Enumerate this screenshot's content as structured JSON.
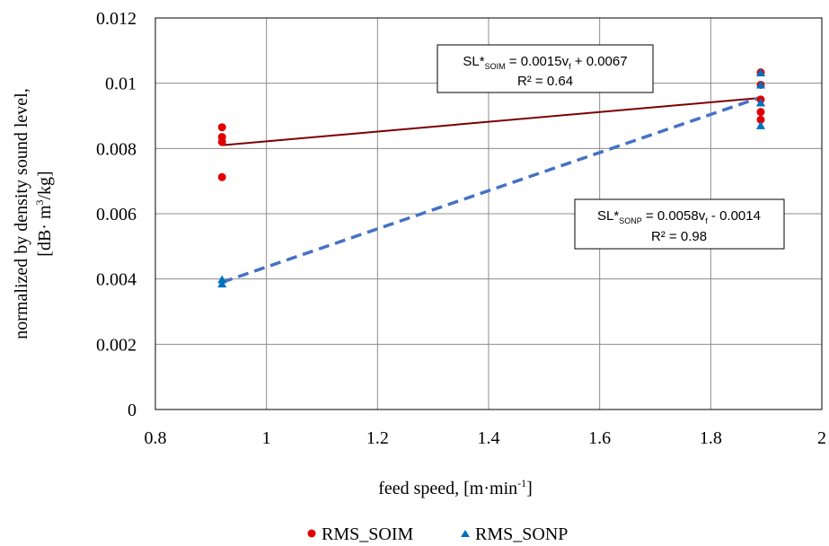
{
  "chart_data": {
    "type": "scatter",
    "title": "",
    "xlabel": "feed speed,  [m·min",
    "xlabel_sup": "-1",
    "xlabel_close": "]",
    "ylabel_line1": "normalized by density sound level,",
    "ylabel_line2_pre": "[dB· m",
    "ylabel_line2_sup": "3",
    "ylabel_line2_post": "/kg]",
    "xlim": [
      0.8,
      2.0
    ],
    "ylim": [
      0,
      0.012
    ],
    "x_ticks": [
      0.8,
      1,
      1.2,
      1.4,
      1.6,
      1.8,
      2
    ],
    "x_tick_labels": [
      "0.8",
      "1",
      "1.2",
      "1.4",
      "1.6",
      "1.8",
      "2"
    ],
    "y_ticks": [
      0,
      0.002,
      0.004,
      0.006,
      0.008,
      0.01,
      0.012
    ],
    "y_tick_labels": [
      "0",
      "0.002",
      "0.004",
      "0.006",
      "0.008",
      "0.01",
      "0.012"
    ],
    "grid": true,
    "legend_position": "bottom",
    "series": [
      {
        "name": "RMS_SOIM",
        "marker": "circle",
        "color": "#E00000",
        "x": [
          0.92,
          0.92,
          0.92,
          0.92,
          1.89,
          1.89,
          1.89,
          1.89,
          1.89
        ],
        "y": [
          0.00865,
          0.00835,
          0.0082,
          0.00712,
          0.01033,
          0.00995,
          0.0095,
          0.00912,
          0.00888
        ]
      },
      {
        "name": "RMS_SONP",
        "marker": "triangle",
        "color": "#0070C0",
        "x": [
          0.92,
          0.92,
          1.89,
          1.89,
          1.89,
          1.89
        ],
        "y": [
          0.00398,
          0.00385,
          0.01032,
          0.00995,
          0.0094,
          0.0087
        ]
      }
    ],
    "trendlines": [
      {
        "series": "RMS_SOIM",
        "color": "#7B0000",
        "style": "solid",
        "x": [
          0.92,
          1.89
        ],
        "y": [
          0.0081,
          0.00955
        ]
      },
      {
        "series": "RMS_SONP",
        "color": "#4472C4",
        "style": "dashed",
        "x": [
          0.92,
          1.89
        ],
        "y": [
          0.0039,
          0.00957
        ]
      }
    ],
    "annotations": [
      {
        "eq_prefix": "SL*",
        "eq_sub": "SOIM",
        "eq_mid": " = 0.0015v",
        "eq_sub2": "f",
        "eq_suffix": " + 0.0067",
        "r2": "R² = 0.64"
      },
      {
        "eq_prefix": "SL*",
        "eq_sub": "SONP",
        "eq_mid": " = 0.0058v",
        "eq_sub2": "f",
        "eq_suffix": " - 0.0014",
        "r2": "R² = 0.98"
      }
    ]
  }
}
